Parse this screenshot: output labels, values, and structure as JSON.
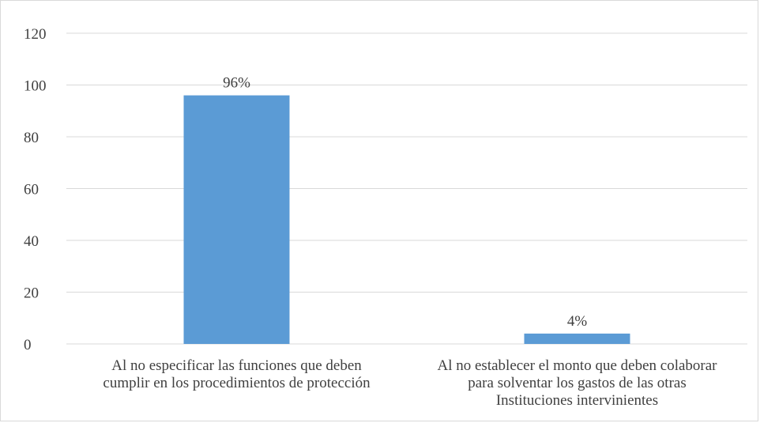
{
  "chart_data": {
    "type": "bar",
    "title": "",
    "xlabel": "",
    "ylabel": "",
    "ylim": [
      0,
      120
    ],
    "yticks": [
      0,
      20,
      40,
      60,
      80,
      100,
      120
    ],
    "grid": true,
    "legend": "none",
    "categories": [
      [
        "Al no especificar las funciones que deben",
        "cumplir en los procedimientos de protección"
      ],
      [
        "Al no establecer el monto que deben colaborar",
        "para solventar los gastos de las otras",
        "Instituciones intervinientes"
      ]
    ],
    "values": [
      96,
      4
    ],
    "data_labels": [
      "96%",
      "4%"
    ],
    "bar_color": "#5b9bd5",
    "grid_color": "#d9d9d9",
    "text_color": "#404040"
  }
}
